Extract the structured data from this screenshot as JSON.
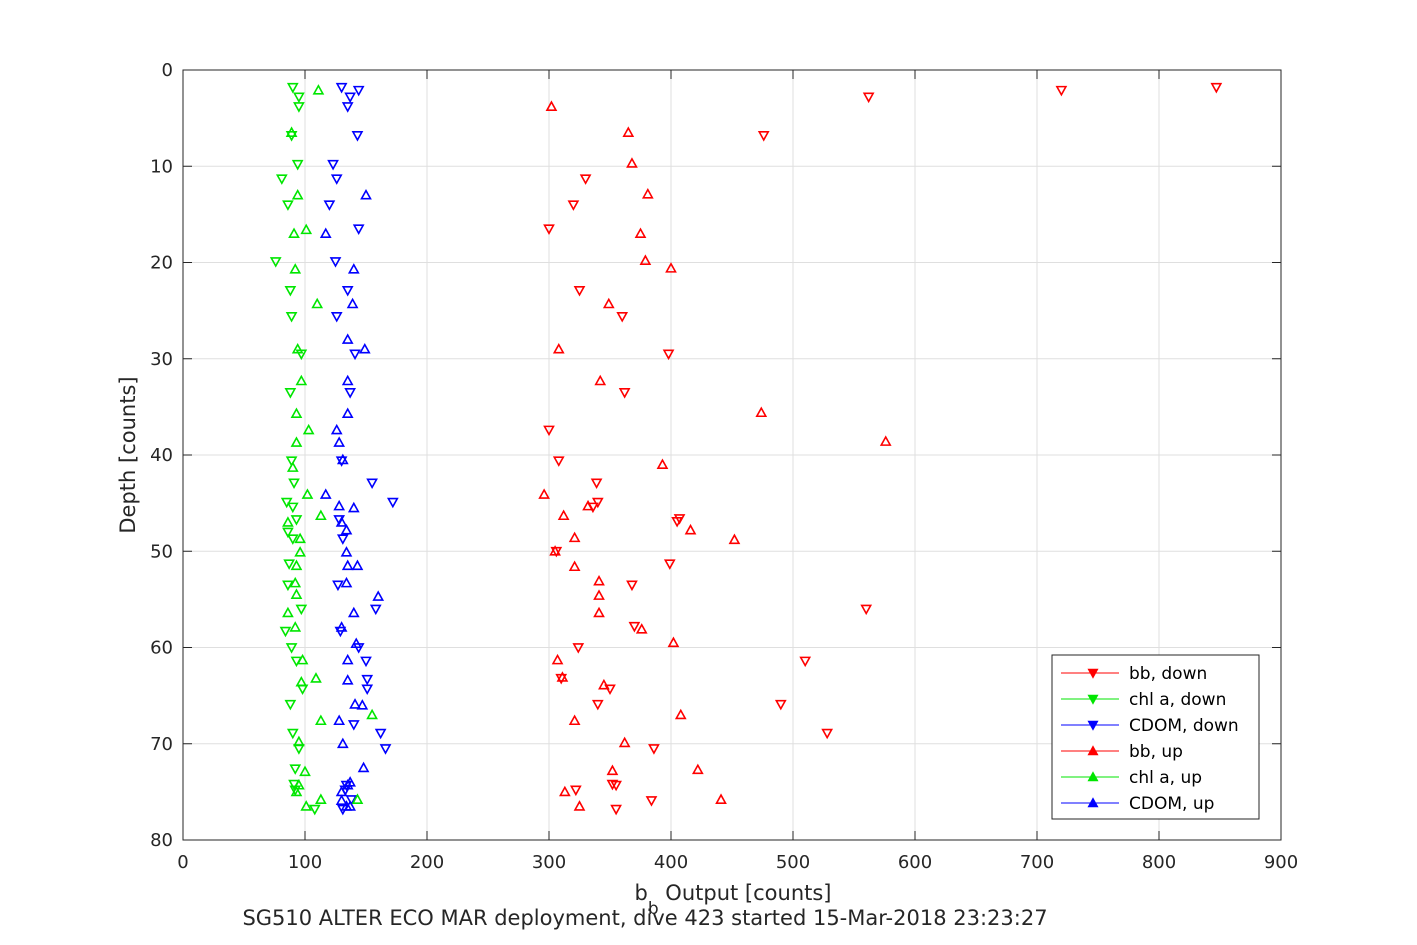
{
  "chart_data": {
    "type": "scatter",
    "xlabel": "b",
    "xlabel_sub": "b",
    "xlabel_rest": " Output [counts]",
    "ylabel": "Depth [counts]",
    "caption": "SG510 ALTER ECO MAR deployment, dive 423 started 15-Mar-2018 23:23:27",
    "xlim": [
      0,
      900
    ],
    "ylim": [
      0,
      80
    ],
    "y_reversed": true,
    "grid": true,
    "xticks": [
      "0",
      "100",
      "200",
      "300",
      "400",
      "500",
      "600",
      "700",
      "800",
      "900"
    ],
    "yticks": [
      "0",
      "10",
      "20",
      "30",
      "40",
      "50",
      "60",
      "70",
      "80"
    ],
    "legend_position": "bottom-right",
    "series": [
      {
        "name": "bb, down",
        "color": "#ff0000",
        "marker": "triangle-down",
        "points": [
          [
            847,
            1.8
          ],
          [
            720,
            2.1
          ],
          [
            562,
            2.8
          ],
          [
            476,
            6.8
          ],
          [
            560,
            56.0
          ],
          [
            490,
            65.9
          ],
          [
            528,
            68.9
          ],
          [
            510,
            61.4
          ],
          [
            398,
            29.5
          ],
          [
            399,
            51.3
          ],
          [
            362,
            33.5
          ],
          [
            368,
            53.5
          ],
          [
            370,
            57.8
          ],
          [
            350,
            64.3
          ],
          [
            339,
            42.9
          ],
          [
            340,
            44.9
          ],
          [
            336,
            45.4
          ],
          [
            407,
            46.6
          ],
          [
            405,
            46.9
          ],
          [
            300,
            37.4
          ],
          [
            300,
            16.5
          ],
          [
            320,
            14.0
          ],
          [
            330,
            11.3
          ],
          [
            325,
            22.9
          ],
          [
            360,
            25.6
          ],
          [
            324,
            60.0
          ],
          [
            310,
            63.2
          ],
          [
            340,
            65.9
          ],
          [
            352,
            74.2
          ],
          [
            355,
            74.3
          ],
          [
            322,
            74.8
          ],
          [
            355,
            76.8
          ],
          [
            386,
            70.5
          ],
          [
            384,
            75.9
          ],
          [
            308,
            40.6
          ],
          [
            306,
            50.0
          ]
        ]
      },
      {
        "name": "chl a, down",
        "color": "#00e600",
        "marker": "triangle-down",
        "points": [
          [
            90,
            1.8
          ],
          [
            95,
            2.8
          ],
          [
            95,
            3.8
          ],
          [
            89,
            6.8
          ],
          [
            94,
            9.8
          ],
          [
            81,
            11.3
          ],
          [
            86,
            14.0
          ],
          [
            76,
            19.9
          ],
          [
            88,
            22.9
          ],
          [
            89,
            25.6
          ],
          [
            97,
            29.5
          ],
          [
            88,
            33.5
          ],
          [
            89,
            40.6
          ],
          [
            91,
            42.9
          ],
          [
            85,
            44.9
          ],
          [
            90,
            45.4
          ],
          [
            93,
            46.7
          ],
          [
            86,
            48.0
          ],
          [
            90,
            48.7
          ],
          [
            87,
            51.3
          ],
          [
            86,
            53.5
          ],
          [
            97,
            56.0
          ],
          [
            84,
            58.3
          ],
          [
            89,
            60.0
          ],
          [
            93,
            61.4
          ],
          [
            98,
            64.3
          ],
          [
            88,
            65.9
          ],
          [
            90,
            68.9
          ],
          [
            95,
            70.5
          ],
          [
            92,
            72.6
          ],
          [
            91,
            74.2
          ],
          [
            92,
            74.8
          ],
          [
            108,
            76.8
          ]
        ]
      },
      {
        "name": "CDOM, down",
        "color": "#0000ff",
        "marker": "triangle-down",
        "points": [
          [
            130,
            1.8
          ],
          [
            144,
            2.1
          ],
          [
            137,
            2.8
          ],
          [
            135,
            3.8
          ],
          [
            143,
            6.8
          ],
          [
            123,
            9.8
          ],
          [
            126,
            11.3
          ],
          [
            120,
            14.0
          ],
          [
            144,
            16.5
          ],
          [
            125,
            19.9
          ],
          [
            135,
            22.9
          ],
          [
            126,
            25.6
          ],
          [
            141,
            29.5
          ],
          [
            137,
            33.5
          ],
          [
            130,
            40.6
          ],
          [
            155,
            42.9
          ],
          [
            172,
            44.9
          ],
          [
            128,
            46.7
          ],
          [
            131,
            48.7
          ],
          [
            127,
            53.5
          ],
          [
            158,
            56.0
          ],
          [
            129,
            58.3
          ],
          [
            144,
            60.0
          ],
          [
            150,
            61.4
          ],
          [
            151,
            64.3
          ],
          [
            151,
            63.3
          ],
          [
            162,
            68.9
          ],
          [
            166,
            70.5
          ],
          [
            140,
            68.0
          ],
          [
            133,
            74.8
          ],
          [
            131,
            76.8
          ],
          [
            138,
            75.8
          ],
          [
            134,
            74.3
          ]
        ]
      },
      {
        "name": "bb, up",
        "color": "#ff0000",
        "marker": "triangle-up",
        "points": [
          [
            302,
            3.8
          ],
          [
            365,
            6.5
          ],
          [
            368,
            9.7
          ],
          [
            381,
            12.9
          ],
          [
            375,
            17.0
          ],
          [
            379,
            19.8
          ],
          [
            400,
            20.6
          ],
          [
            349,
            24.3
          ],
          [
            308,
            29.0
          ],
          [
            342,
            32.3
          ],
          [
            474,
            35.6
          ],
          [
            576,
            38.6
          ],
          [
            393,
            41.0
          ],
          [
            296,
            44.1
          ],
          [
            332,
            45.3
          ],
          [
            312,
            46.3
          ],
          [
            416,
            47.8
          ],
          [
            452,
            48.8
          ],
          [
            321,
            48.6
          ],
          [
            305,
            50.0
          ],
          [
            321,
            51.6
          ],
          [
            341,
            53.1
          ],
          [
            341,
            54.6
          ],
          [
            341,
            56.4
          ],
          [
            376,
            58.1
          ],
          [
            402,
            59.5
          ],
          [
            307,
            61.3
          ],
          [
            311,
            63.1
          ],
          [
            345,
            63.9
          ],
          [
            408,
            67.0
          ],
          [
            321,
            67.6
          ],
          [
            362,
            69.9
          ],
          [
            422,
            72.7
          ],
          [
            352,
            72.8
          ],
          [
            441,
            75.8
          ],
          [
            325,
            76.5
          ],
          [
            313,
            75.0
          ]
        ]
      },
      {
        "name": "chl a, up",
        "color": "#00e600",
        "marker": "triangle-up",
        "points": [
          [
            111,
            2.1
          ],
          [
            89,
            6.5
          ],
          [
            94,
            13.0
          ],
          [
            91,
            17.0
          ],
          [
            101,
            16.6
          ],
          [
            92,
            20.7
          ],
          [
            110,
            24.3
          ],
          [
            94,
            29.0
          ],
          [
            97,
            32.3
          ],
          [
            93,
            35.7
          ],
          [
            103,
            37.4
          ],
          [
            93,
            38.7
          ],
          [
            90,
            41.3
          ],
          [
            102,
            44.1
          ],
          [
            113,
            46.3
          ],
          [
            86,
            47.0
          ],
          [
            96,
            48.7
          ],
          [
            96,
            50.1
          ],
          [
            93,
            51.5
          ],
          [
            92,
            53.3
          ],
          [
            93,
            54.5
          ],
          [
            86,
            56.4
          ],
          [
            92,
            57.9
          ],
          [
            98,
            61.3
          ],
          [
            109,
            63.2
          ],
          [
            97,
            63.6
          ],
          [
            113,
            67.6
          ],
          [
            155,
            67.0
          ],
          [
            95,
            69.8
          ],
          [
            100,
            72.9
          ],
          [
            95,
            74.3
          ],
          [
            93,
            75.0
          ],
          [
            113,
            75.8
          ],
          [
            143,
            75.8
          ],
          [
            101,
            76.5
          ]
        ]
      },
      {
        "name": "CDOM, up",
        "color": "#0000ff",
        "marker": "triangle-up",
        "points": [
          [
            150,
            13.0
          ],
          [
            117,
            17.0
          ],
          [
            140,
            20.7
          ],
          [
            135,
            28.0
          ],
          [
            139,
            24.3
          ],
          [
            149,
            29.0
          ],
          [
            135,
            32.3
          ],
          [
            135,
            35.7
          ],
          [
            126,
            37.4
          ],
          [
            128,
            38.7
          ],
          [
            131,
            40.5
          ],
          [
            117,
            44.1
          ],
          [
            128,
            45.3
          ],
          [
            140,
            45.5
          ],
          [
            130,
            47.0
          ],
          [
            134,
            47.8
          ],
          [
            134,
            50.1
          ],
          [
            135,
            51.5
          ],
          [
            143,
            51.5
          ],
          [
            134,
            53.3
          ],
          [
            160,
            54.7
          ],
          [
            140,
            56.4
          ],
          [
            130,
            57.9
          ],
          [
            142,
            59.6
          ],
          [
            135,
            61.3
          ],
          [
            135,
            63.4
          ],
          [
            141,
            65.9
          ],
          [
            147,
            66.0
          ],
          [
            128,
            67.6
          ],
          [
            131,
            70.0
          ],
          [
            148,
            72.5
          ],
          [
            135,
            74.3
          ],
          [
            137,
            74.0
          ],
          [
            130,
            75.0
          ],
          [
            134,
            76.5
          ],
          [
            137,
            76.5
          ],
          [
            130,
            75.9
          ]
        ]
      }
    ]
  }
}
